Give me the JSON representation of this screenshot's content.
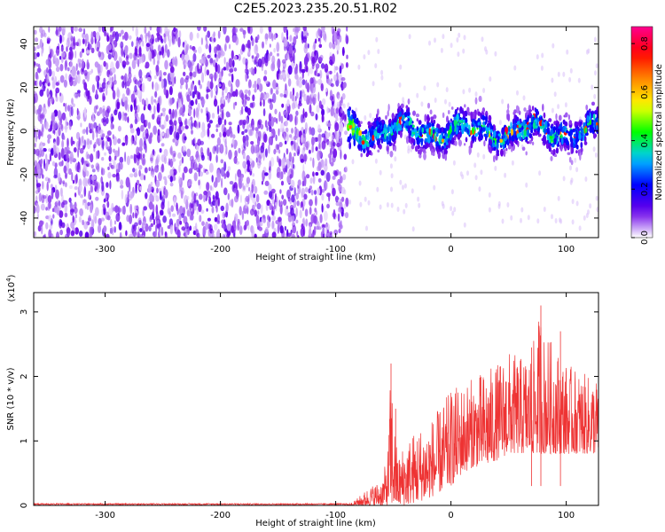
{
  "title": "C2E5.2023.235.20.51.R02",
  "chart_data": [
    {
      "type": "heatmap",
      "xlabel": "Height of straight line (km)",
      "ylabel": "Frequency (Hz)",
      "xlim": [
        -362,
        128
      ],
      "ylim": [
        -49,
        48
      ],
      "x_ticks": [
        -300,
        -200,
        -100,
        0,
        100
      ],
      "y_ticks": [
        -40,
        -20,
        0,
        20,
        40
      ],
      "colorbar": {
        "label": "Normalized spectral amplitude",
        "range": [
          0,
          0.87
        ],
        "ticks": [
          0.0,
          0.2,
          0.4,
          0.6,
          0.8
        ],
        "colors": [
          "#ffffff",
          "#6a00e8",
          "#0000ff",
          "#00c8ff",
          "#00ff00",
          "#ffff00",
          "#ff8800",
          "#ff0000",
          "#ff0090"
        ]
      },
      "regions": [
        {
          "x_range": [
            -362,
            -90
          ],
          "freq_range": [
            -49,
            48
          ],
          "amplitude_range": [
            0.0,
            0.1
          ],
          "description": "broadband noise"
        },
        {
          "x_range": [
            -90,
            128
          ],
          "freq_range": [
            -15,
            15
          ],
          "center_freq": 0,
          "amplitude_range": [
            0.1,
            0.8
          ],
          "description": "narrow signal band"
        }
      ],
      "grid": false
    },
    {
      "type": "line",
      "xlabel": "Height of straight line (km)",
      "ylabel": "SNR (10 * v/v)",
      "y_multiplier": "(x10^4)",
      "xlim": [
        -362,
        128
      ],
      "ylim": [
        0,
        3.3
      ],
      "x_ticks": [
        -300,
        -200,
        -100,
        0,
        100
      ],
      "y_ticks": [
        0,
        1,
        2,
        3
      ],
      "color": "#ee3333",
      "series": [
        {
          "x": [
            -362,
            -300,
            -200,
            -100,
            -85,
            -70,
            -60,
            -55,
            -52,
            -48,
            -45,
            -40,
            -30,
            -20,
            -10,
            0,
            10,
            20,
            30,
            40,
            50,
            60,
            70,
            78,
            80,
            90,
            100,
            110,
            120,
            128
          ],
          "y_low": [
            0,
            0,
            0,
            0,
            0,
            0,
            0,
            0,
            0,
            0,
            0,
            0,
            0.05,
            0.1,
            0.2,
            0.3,
            0.5,
            0.6,
            0.6,
            0.7,
            0.8,
            0.8,
            0.8,
            0.8,
            0.8,
            0.8,
            0.8,
            0.8,
            0.8,
            0.8
          ],
          "y_high": [
            0.03,
            0.03,
            0.03,
            0.03,
            0.05,
            0.3,
            0.4,
            0.8,
            2.2,
            1.0,
            0.8,
            1.0,
            1.2,
            1.3,
            1.5,
            1.8,
            1.9,
            2.0,
            2.1,
            2.2,
            2.4,
            2.3,
            2.4,
            3.1,
            2.7,
            2.5,
            2.2,
            2.1,
            2.0,
            2.0
          ]
        }
      ],
      "grid": false
    }
  ]
}
